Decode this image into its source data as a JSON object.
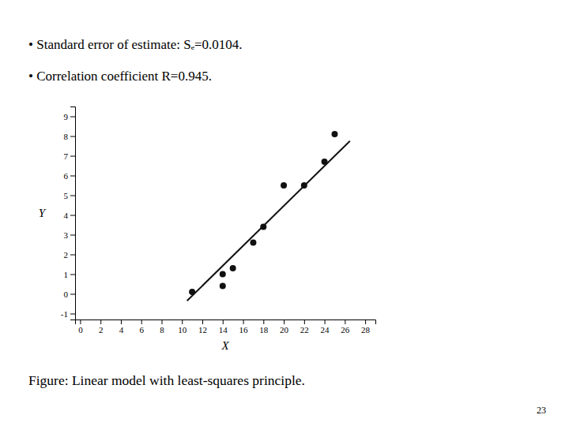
{
  "chart_data": {
    "type": "scatter",
    "xlabel": "X",
    "ylabel": "Y",
    "annotations": [
      "•  Standard error of estimate: Sₑ=0.0104.",
      "•  Correlation coefficient R=0.945.",
      "Figure: Linear model with least-squares principle.",
      "23"
    ],
    "xlim": [
      -0.5,
      29
    ],
    "ylim": [
      -1.3,
      9.5
    ],
    "xticks": [
      0,
      2,
      4,
      6,
      8,
      10,
      12,
      14,
      16,
      18,
      20,
      22,
      24,
      26,
      28
    ],
    "yticks": [
      -1,
      0,
      1,
      2,
      3,
      4,
      5,
      6,
      7,
      8,
      9
    ],
    "series": [
      {
        "type": "scatter",
        "color": "#111111",
        "x": [
          11,
          14,
          14,
          15,
          17,
          18,
          20,
          22,
          24,
          25
        ],
        "values": [
          0.1,
          0.4,
          1.0,
          1.3,
          2.6,
          3.4,
          5.5,
          5.5,
          6.7,
          8.1
        ]
      },
      {
        "type": "line",
        "color": "#111111",
        "x": [
          10.5,
          26.5
        ],
        "values": [
          -0.35,
          7.75
        ]
      }
    ]
  }
}
